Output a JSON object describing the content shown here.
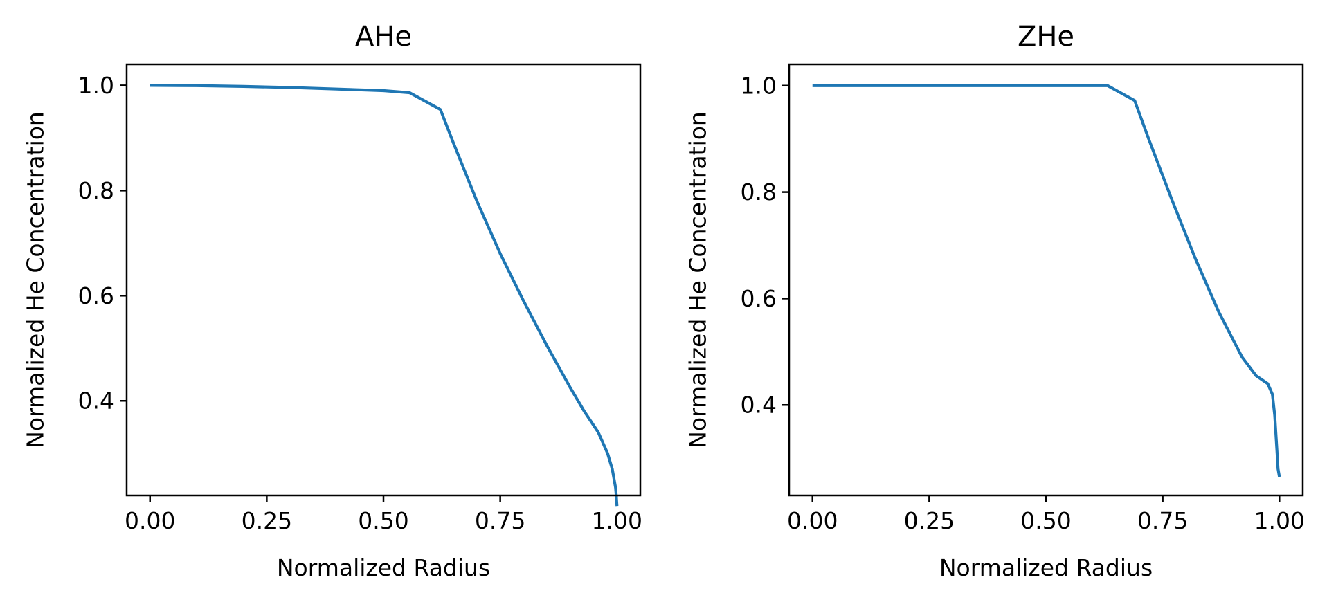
{
  "chart_data": [
    {
      "type": "line",
      "title": "AHe",
      "xlabel": "Normalized Radius",
      "ylabel": "Normalized He Concentration",
      "xlim": [
        -0.05,
        1.05
      ],
      "ylim": [
        0.22,
        1.04
      ],
      "xticks": [
        0.0,
        0.25,
        0.5,
        0.75,
        1.0
      ],
      "xtick_labels": [
        "0.00",
        "0.25",
        "0.50",
        "0.75",
        "1.00"
      ],
      "yticks": [
        0.4,
        0.6,
        0.8,
        1.0
      ],
      "ytick_labels": [
        "0.4",
        "0.6",
        "0.8",
        "1.0"
      ],
      "grid": false,
      "series": [
        {
          "color": "#1f77b4",
          "x": [
            0.0,
            0.1,
            0.2,
            0.3,
            0.4,
            0.5,
            0.556,
            0.622,
            0.65,
            0.7,
            0.75,
            0.8,
            0.85,
            0.9,
            0.93,
            0.96,
            0.98,
            0.99,
            0.995,
            0.997,
            0.998,
            1.0
          ],
          "y": [
            1.0,
            0.9995,
            0.998,
            0.996,
            0.993,
            0.99,
            0.986,
            0.954,
            0.89,
            0.78,
            0.68,
            0.59,
            0.505,
            0.425,
            0.38,
            0.34,
            0.3,
            0.27,
            0.245,
            0.235,
            0.225,
            0.2
          ]
        }
      ]
    },
    {
      "type": "line",
      "title": "ZHe",
      "xlabel": "Normalized Radius",
      "ylabel": "Normalized He Concentration",
      "xlim": [
        -0.05,
        1.05
      ],
      "ylim": [
        0.23,
        1.04
      ],
      "xticks": [
        0.0,
        0.25,
        0.5,
        0.75,
        1.0
      ],
      "xtick_labels": [
        "0.00",
        "0.25",
        "0.50",
        "0.75",
        "1.00"
      ],
      "yticks": [
        0.4,
        0.6,
        0.8,
        1.0
      ],
      "ytick_labels": [
        "0.4",
        "0.6",
        "0.8",
        "1.0"
      ],
      "grid": false,
      "series": [
        {
          "color": "#1f77b4",
          "x": [
            0.0,
            0.2,
            0.4,
            0.6,
            0.632,
            0.69,
            0.72,
            0.77,
            0.82,
            0.87,
            0.92,
            0.95,
            0.975,
            0.985,
            0.99,
            0.995,
            0.997,
            1.0
          ],
          "y": [
            1.0,
            1.0,
            1.0,
            1.0,
            1.0,
            0.972,
            0.9,
            0.785,
            0.675,
            0.575,
            0.49,
            0.455,
            0.44,
            0.42,
            0.38,
            0.31,
            0.28,
            0.265
          ]
        }
      ]
    }
  ]
}
